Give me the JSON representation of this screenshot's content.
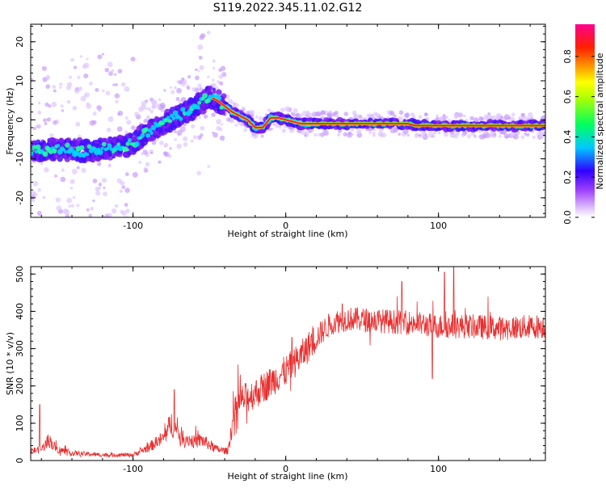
{
  "title": "S119.2022.345.11.02.G12",
  "chart_data": [
    {
      "type": "heatmap",
      "xlabel": "Height of straight line (km)",
      "ylabel": "Frequency (Hz)",
      "xlim": [
        -167,
        170
      ],
      "ylim": [
        -25,
        24.5
      ],
      "x_ticks": [
        -100,
        0,
        100
      ],
      "y_ticks": [
        -20,
        -10,
        0,
        10,
        20
      ],
      "ridge": {
        "x": [
          -167,
          -150,
          -130,
          -110,
          -100,
          -90,
          -80,
          -70,
          -60,
          -50,
          -45,
          -40,
          -35,
          -30,
          -25,
          -20,
          -15,
          -10,
          -5,
          0,
          10,
          20,
          30,
          60,
          80,
          85,
          90,
          100,
          120,
          150,
          168
        ],
        "y": [
          -8,
          -7.5,
          -8,
          -7,
          -6,
          -3,
          -1,
          1,
          3,
          6,
          5,
          3.5,
          2,
          1,
          0,
          -2,
          -2,
          0.5,
          0.5,
          0,
          -1,
          -1,
          -1,
          -1,
          -1,
          -1.5,
          -1.5,
          -1.5,
          -1.5,
          -1.5,
          -1.5
        ]
      },
      "colorbar": {
        "label": "Normalized spectral amplitude",
        "ticks": [
          0.0,
          0.2,
          0.4,
          0.6,
          0.8
        ],
        "range": [
          0,
          0.96
        ],
        "colors": [
          "#ffffff",
          "#a040ff",
          "#3000ff",
          "#00d0ff",
          "#00ff40",
          "#ffff00",
          "#ff4000",
          "#ff0090"
        ]
      }
    },
    {
      "type": "line",
      "xlabel": "Height of straight line (km)",
      "ylabel": "SNR (10 * v/v)",
      "xlim": [
        -167,
        170
      ],
      "ylim": [
        0,
        520
      ],
      "x_ticks": [
        -100,
        0,
        100
      ],
      "y_ticks": [
        0,
        100,
        200,
        300,
        400,
        500
      ],
      "color": "#e83030",
      "trend": {
        "x": [
          -167,
          -160,
          -155,
          -150,
          -140,
          -120,
          -100,
          -90,
          -80,
          -75,
          -70,
          -60,
          -55,
          -45,
          -38,
          -34,
          -30,
          -20,
          -10,
          0,
          10,
          20,
          30,
          40,
          60,
          80,
          100,
          120,
          140,
          168
        ],
        "y": [
          25,
          30,
          55,
          30,
          20,
          15,
          15,
          35,
          60,
          100,
          70,
          50,
          55,
          30,
          25,
          120,
          160,
          180,
          210,
          240,
          280,
          330,
          370,
          380,
          375,
          370,
          360,
          360,
          355,
          360
        ]
      },
      "spikes": [
        {
          "x": -161,
          "y": 150
        },
        {
          "x": -73,
          "y": 190
        },
        {
          "x": 4,
          "y": 330
        },
        {
          "x": 37,
          "y": 420
        },
        {
          "x": 76,
          "y": 480
        },
        {
          "x": 104,
          "y": 505
        },
        {
          "x": 110,
          "y": 520
        },
        {
          "x": 96,
          "y": 220
        }
      ]
    }
  ]
}
